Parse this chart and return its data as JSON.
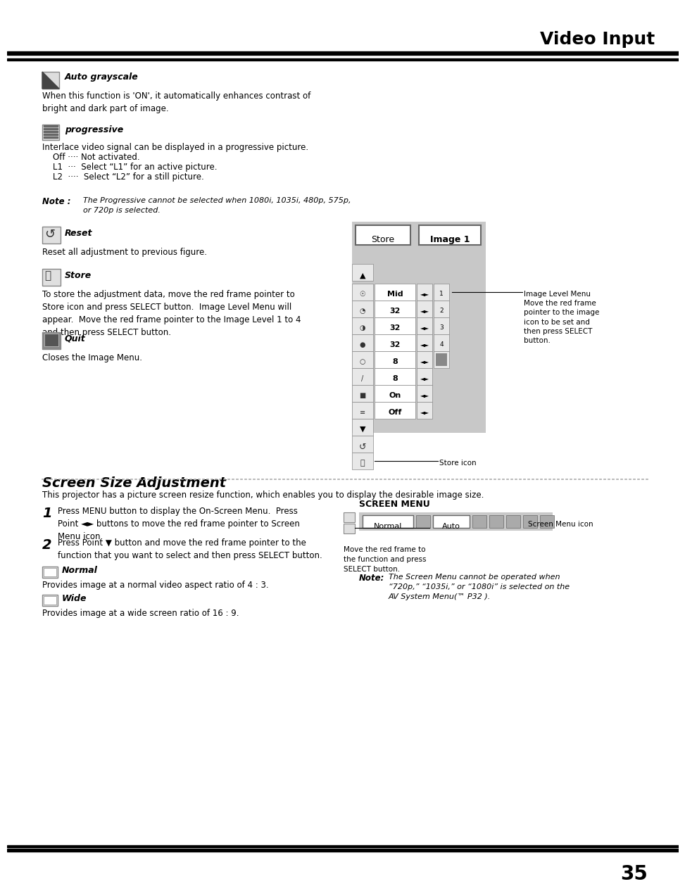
{
  "page_title": "Video Input",
  "page_number": "35",
  "bg_color": "#ffffff",
  "section1_title": "Screen Size Adjustment",
  "section1_intro": "This projector has a picture screen resize function, which enables you to display the desirable image size.",
  "step1_number": "1",
  "step1_text": "Press MENU button to display the On-Screen Menu.  Press\nPoint ◄► buttons to move the red frame pointer to Screen\nMenu icon.",
  "step2_number": "2",
  "step2_text": "Press Point ▼ button and move the red frame pointer to the\nfunction that you want to select and then press SELECT button.",
  "normal_title": "Normal",
  "normal_text": "Provides image at a normal video aspect ratio of 4 : 3.",
  "wide_title": "Wide",
  "wide_text": "Provides image at a wide screen ratio of 16 : 9.",
  "screen_menu_label": "SCREEN MENU",
  "screen_menu_note_label": "Note:",
  "screen_menu_note_text": "The Screen Menu cannot be operated when\n“720p,” “1035i,” or “1080i” is selected on the\nAV System Menu(™ P32 ).",
  "screen_menu_annotation": "Move the red frame to\nthe function and press\nSELECT button.",
  "screen_menu_icon_label": "Screen Menu icon",
  "auto_grayscale_title": "Auto grayscale",
  "auto_grayscale_text": "When this function is 'ON', it automatically enhances contrast of\nbright and dark part of image.",
  "progressive_title": "progressive",
  "progressive_lines": [
    "Interlace video signal can be displayed in a progressive picture.",
    "    Off ···· Not activated.",
    "    L1  ···  Select “L1” for an active picture.",
    "    L2  ····  Select “L2” for a still picture."
  ],
  "note_label": "Note :",
  "note_text1": "The Progressive cannot be selected when 1080i, 1035i, 480p, 575p,",
  "note_text2": "or 720p is selected.",
  "reset_title": "Reset",
  "reset_text": "Reset all adjustment to previous figure.",
  "store_title": "Store",
  "store_text": "To store the adjustment data, move the red frame pointer to\nStore icon and press SELECT button.  Image Level Menu will\nappear.  Move the red frame pointer to the Image Level 1 to 4\nand then press SELECT button.",
  "quit_title": "Quit",
  "quit_text": "Closes the Image Menu.",
  "image_level_annotation": "Image Level Menu\nMove the red frame\npointer to the image\nicon to be set and\nthen press SELECT\nbutton.",
  "store_icon_label": "Store icon",
  "panel_rows": [
    "Mid",
    "32",
    "32",
    "32",
    "8",
    "8",
    "On",
    "Off"
  ],
  "panel_gray": "#c8c8c8",
  "panel_light": "#e8e8e8",
  "panel_white": "#ffffff",
  "header_black": "#000000",
  "text_dark": "#333333",
  "text_med": "#666666"
}
